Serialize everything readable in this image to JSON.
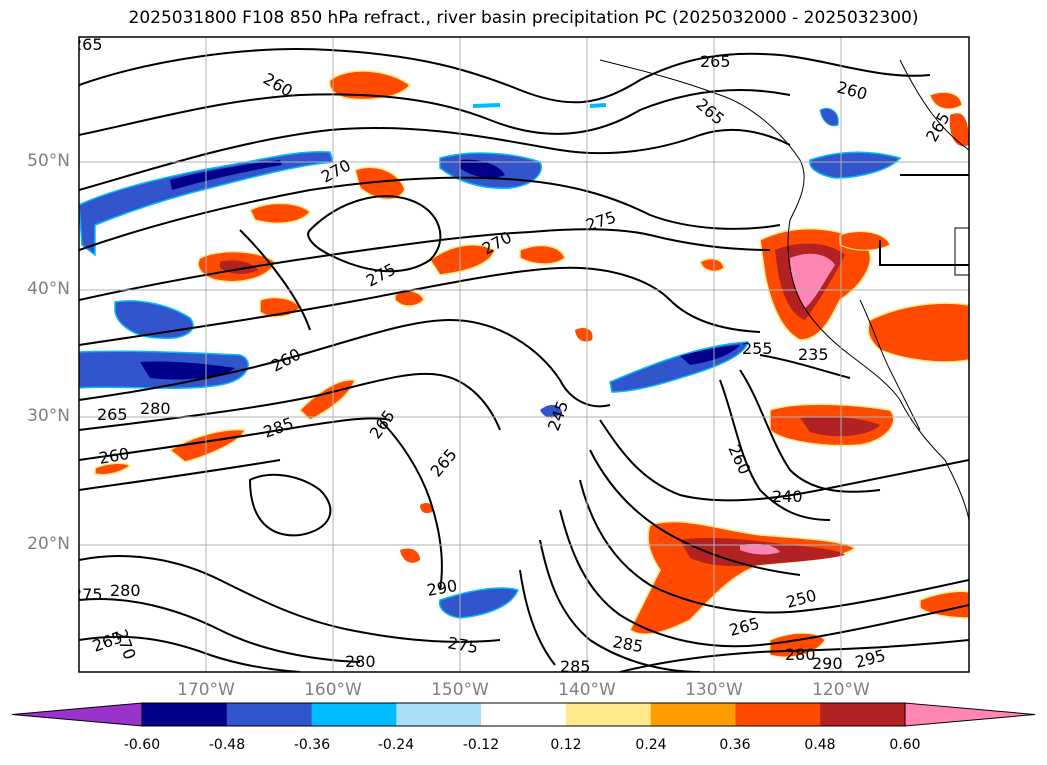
{
  "title": "2025031800 F108 850 hPa refract., river basin precipitation PC (2025032000 - 2025032300)",
  "longitude_labels": [
    "170°W",
    "160°W",
    "150°W",
    "140°W",
    "130°W",
    "120°W"
  ],
  "latitude_labels": [
    "50°N",
    "40°N",
    "30°N",
    "20°N"
  ],
  "contour_labels": [
    "265",
    "260",
    "265",
    "265",
    "260",
    "265",
    "270",
    "270",
    "275",
    "275",
    "260",
    "265",
    "280",
    "285",
    "260",
    "265",
    "265",
    "245",
    "260",
    "255",
    "235",
    "240",
    "250",
    "265",
    "285",
    "290",
    "275",
    "280",
    "290",
    "295",
    "280",
    "285",
    "275",
    "280",
    "270",
    "265"
  ],
  "colorbar": {
    "tick_labels": [
      "-0.60",
      "-0.48",
      "-0.36",
      "-0.24",
      "-0.12",
      "0.12",
      "0.24",
      "0.36",
      "0.48",
      "0.60"
    ],
    "colors": [
      "#9933cc",
      "#00008b",
      "#3355cc",
      "#00bbff",
      "#aaddf8",
      "#ffffff",
      "#ffe98a",
      "#ff9c00",
      "#ff4a00",
      "#b22222",
      "#ff85b5"
    ],
    "extend": "both"
  },
  "map_colors": {
    "coast": "#000000",
    "grid": "#b0b0b0",
    "contour": "#000000"
  }
}
